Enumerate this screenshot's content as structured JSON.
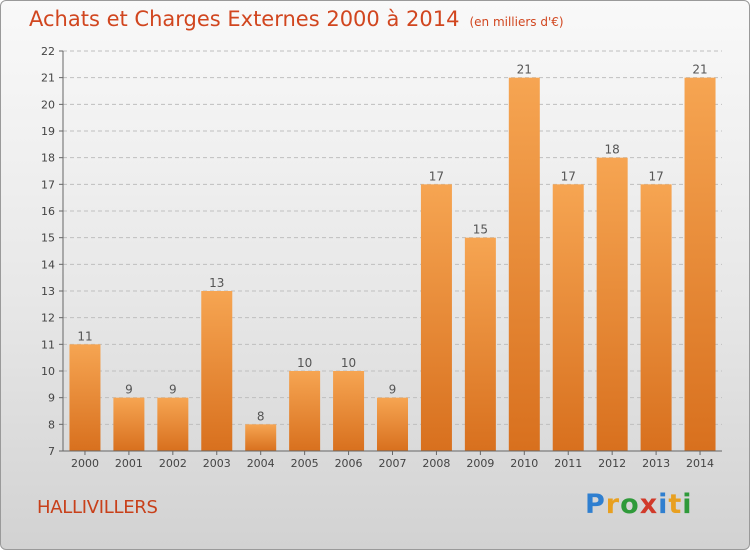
{
  "header": {
    "title": "Achats et Charges Externes 2000 à 2014",
    "unit": "(en milliers d'€)"
  },
  "footer": {
    "place": "HALLIVILLERS",
    "logo_letters": [
      "P",
      "r",
      "o",
      "x",
      "i",
      "t",
      "i"
    ],
    "logo_colors": [
      "#2f7fd0",
      "#e8a020",
      "#2f9a3a",
      "#d13a2a",
      "#2f7fd0",
      "#e8a020",
      "#2f9a3a"
    ]
  },
  "colors": {
    "title": "#d1461f",
    "bar_top": "#f6a552",
    "bar_bottom": "#d8701e",
    "grid": "#bfbfbf"
  },
  "chart_data": {
    "type": "bar",
    "categories": [
      "2000",
      "2001",
      "2002",
      "2003",
      "2004",
      "2005",
      "2006",
      "2007",
      "2008",
      "2009",
      "2010",
      "2011",
      "2012",
      "2013",
      "2014"
    ],
    "values": [
      11,
      9,
      9,
      13,
      8,
      10,
      10,
      9,
      17,
      15,
      21,
      17,
      18,
      17,
      21
    ],
    "ylim": [
      7,
      22
    ],
    "yticks": [
      7,
      8,
      9,
      10,
      11,
      12,
      13,
      14,
      15,
      16,
      17,
      18,
      19,
      20,
      21,
      22
    ],
    "grid": "horizontal dashed",
    "data_labels": true
  }
}
